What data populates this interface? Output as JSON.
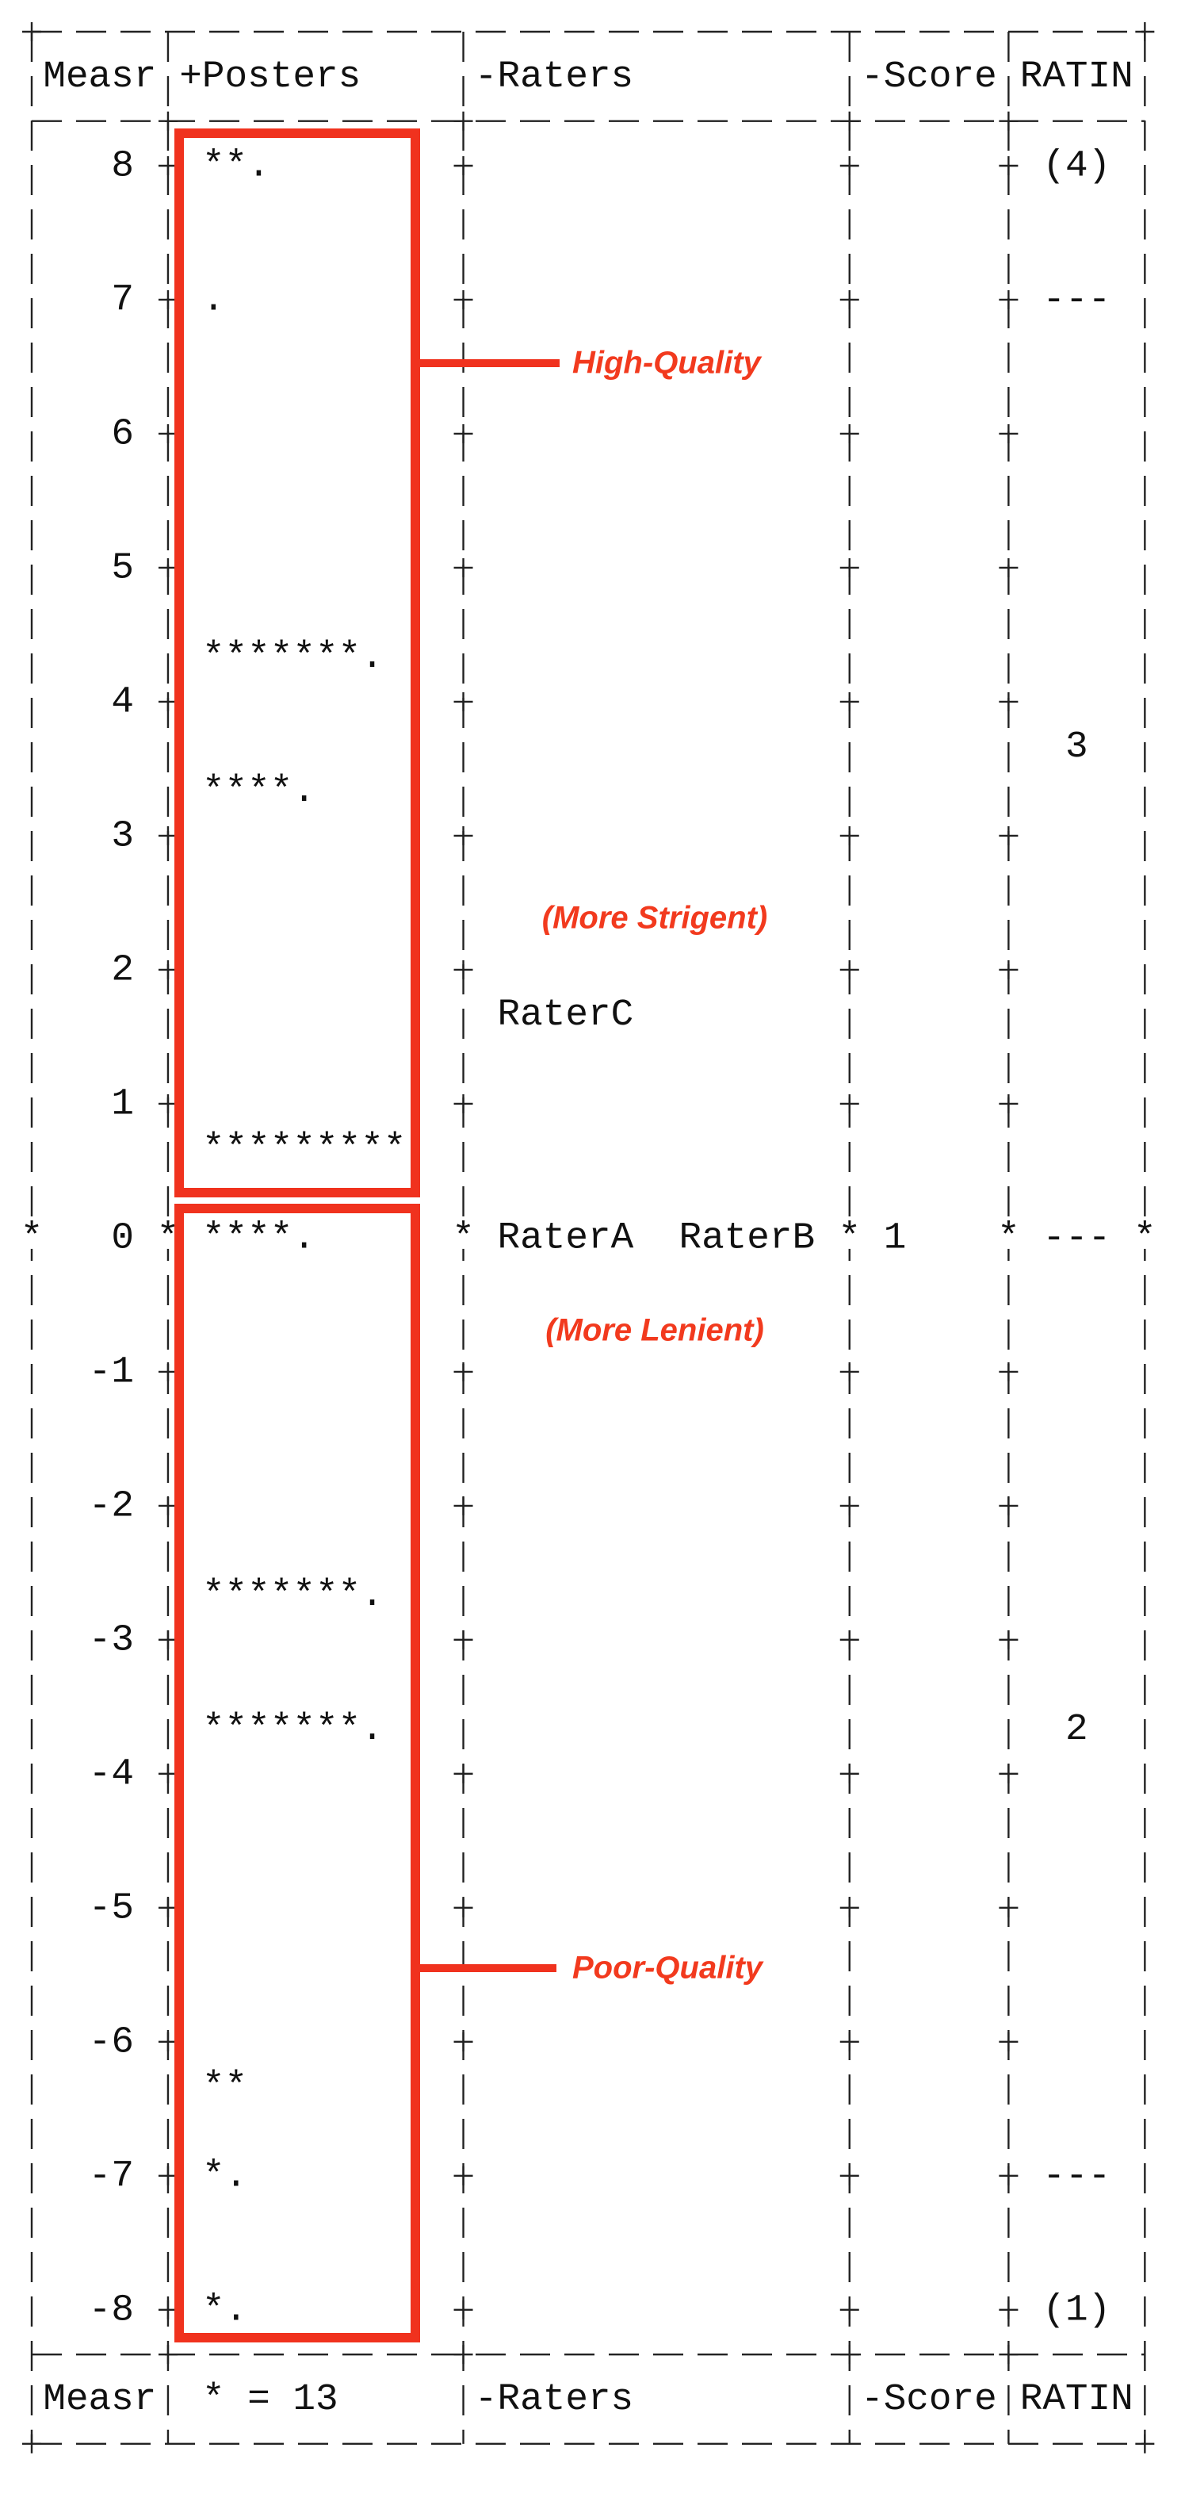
{
  "header": {
    "measure": "Measr",
    "posters": "+Posters",
    "raters": "-Raters",
    "score": "-Score",
    "rating": "RATIN"
  },
  "rows": [
    {
      "measure": "8",
      "posters": "**.",
      "rating": "(4)"
    },
    {},
    {},
    {
      "measure": "7",
      "posters": ".",
      "rating": "---"
    },
    {},
    {},
    {
      "measure": "6"
    },
    {},
    {},
    {
      "measure": "5"
    },
    {},
    {
      "posters": "*******."
    },
    {
      "measure": "4"
    },
    {
      "rating": "3"
    },
    {
      "posters": "****."
    },
    {
      "measure": "3"
    },
    {},
    {},
    {
      "measure": "2"
    },
    {
      "raters": "RaterC"
    },
    {},
    {
      "measure": "1"
    },
    {
      "posters": "*********"
    },
    {},
    {
      "measure": "0",
      "marker": "*",
      "posters": "****.",
      "raters": "RaterA  RaterB",
      "score": "1",
      "rating": "---"
    },
    {},
    {},
    {
      "measure": "-1"
    },
    {},
    {},
    {
      "measure": "-2"
    },
    {},
    {
      "posters": "*******."
    },
    {
      "measure": "-3"
    },
    {},
    {
      "posters": "*******.",
      "rating": "2"
    },
    {
      "measure": "-4"
    },
    {},
    {},
    {
      "measure": "-5"
    },
    {},
    {},
    {
      "measure": "-6"
    },
    {
      "posters": "**"
    },
    {},
    {
      "measure": "-7",
      "posters": "*.",
      "rating": "---"
    },
    {},
    {},
    {
      "measure": "-8",
      "posters": "*.",
      "rating": "(1)"
    }
  ],
  "footer": {
    "measure": "Measr",
    "posters": "* = 13",
    "raters": "-Raters",
    "score": "-Score",
    "rating": "RATIN"
  },
  "annotations": {
    "high": "High-Quality",
    "stringent": "(More Strigent)",
    "lenient": "(More Lenient)",
    "poor": "Poor-Quality"
  }
}
